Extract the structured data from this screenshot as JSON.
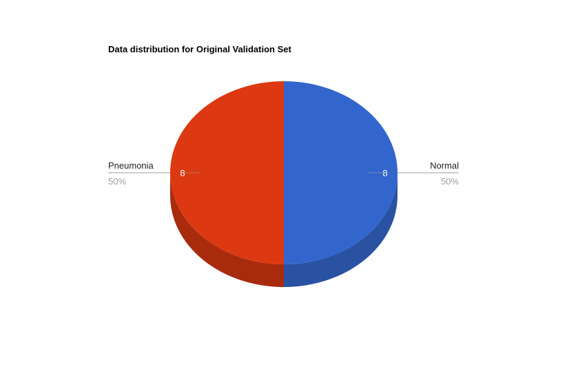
{
  "chart_data": {
    "type": "pie",
    "style": "3d",
    "title": "Data distribution for Original Validation Set",
    "slices": [
      {
        "label": "Normal",
        "value": 8,
        "percent": "50%",
        "color": "#3366cc",
        "side_color": "#2a52a3",
        "value_label": "8"
      },
      {
        "label": "Pneumonia",
        "value": 8,
        "percent": "50%",
        "color": "#dc3912",
        "side_color": "#a82b0e",
        "value_label": "8"
      }
    ],
    "legend": "labeled-callouts"
  }
}
